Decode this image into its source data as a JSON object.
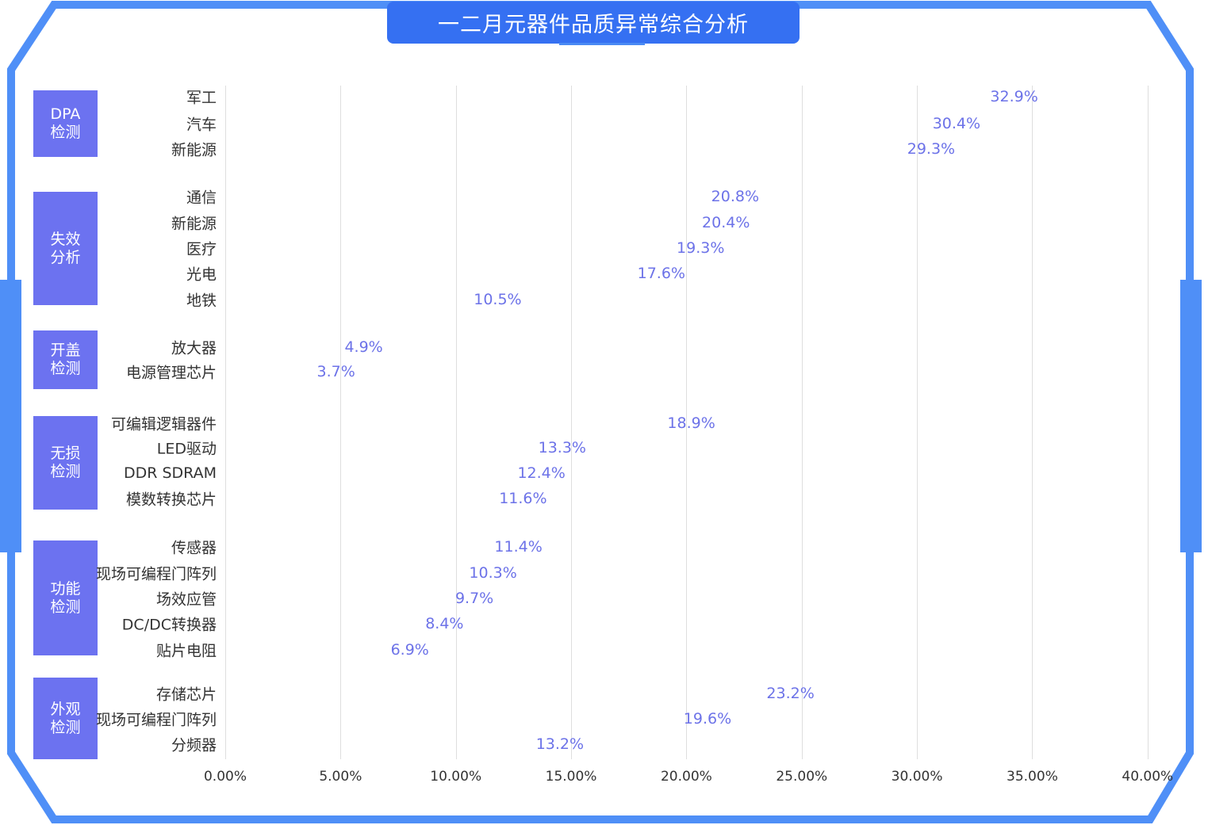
{
  "title": "一二月元器件品质异常综合分析",
  "colors": {
    "frame": "#4f8ff7",
    "title_bg": "#3570f2",
    "group_box": "#6c72f0",
    "bar_start": "#8a9df0",
    "bar_end": "#c5b2f8",
    "value_label": "#6c72e8",
    "gridline": "#dedede"
  },
  "chart_data": {
    "type": "bar",
    "orientation": "horizontal",
    "title": "一二月元器件品质异常综合分析",
    "xlabel": "",
    "ylabel": "",
    "xlim": [
      0,
      40
    ],
    "x_ticks": [
      "0.00%",
      "5.00%",
      "10.00%",
      "15.00%",
      "20.00%",
      "25.00%",
      "30.00%",
      "35.00%",
      "40.00%"
    ],
    "grid": "vertical",
    "legend": "none",
    "groups": [
      {
        "name": "DPA\n检测",
        "line1": "DPA",
        "line2": "检测",
        "items": [
          {
            "label": "军工",
            "value": 32.9,
            "text": "32.9%"
          },
          {
            "label": "汽车",
            "value": 30.4,
            "text": "30.4%"
          },
          {
            "label": "新能源",
            "value": 29.3,
            "text": "29.3%"
          }
        ]
      },
      {
        "name": "失效\n分析",
        "line1": "失效",
        "line2": "分析",
        "items": [
          {
            "label": "通信",
            "value": 20.8,
            "text": "20.8%"
          },
          {
            "label": "新能源",
            "value": 20.4,
            "text": "20.4%"
          },
          {
            "label": "医疗",
            "value": 19.3,
            "text": "19.3%"
          },
          {
            "label": "光电",
            "value": 17.6,
            "text": "17.6%"
          },
          {
            "label": "地铁",
            "value": 10.5,
            "text": "10.5%"
          }
        ]
      },
      {
        "name": "开盖\n检测",
        "line1": "开盖",
        "line2": "检测",
        "items": [
          {
            "label": "放大器",
            "value": 4.9,
            "text": "4.9%"
          },
          {
            "label": "电源管理芯片",
            "value": 3.7,
            "text": "3.7%"
          }
        ]
      },
      {
        "name": "无损\n检测",
        "line1": "无损",
        "line2": "检测",
        "items": [
          {
            "label": "可编辑逻辑器件",
            "value": 18.9,
            "text": "18.9%"
          },
          {
            "label": "LED驱动",
            "value": 13.3,
            "text": "13.3%"
          },
          {
            "label": "DDR SDRAM",
            "value": 12.4,
            "text": "12.4%"
          },
          {
            "label": "模数转换芯片",
            "value": 11.6,
            "text": "11.6%"
          }
        ]
      },
      {
        "name": "功能\n检测",
        "line1": "功能",
        "line2": "检测",
        "items": [
          {
            "label": "传感器",
            "value": 11.4,
            "text": "11.4%"
          },
          {
            "label": "现场可编程门阵列",
            "value": 10.3,
            "text": "10.3%"
          },
          {
            "label": "场效应管",
            "value": 9.7,
            "text": "9.7%"
          },
          {
            "label": "DC/DC转换器",
            "value": 8.4,
            "text": "8.4%"
          },
          {
            "label": "贴片电阻",
            "value": 6.9,
            "text": "6.9%"
          }
        ]
      },
      {
        "name": "外观\n检测",
        "line1": "外观",
        "line2": "检测",
        "items": [
          {
            "label": "存储芯片",
            "value": 23.2,
            "text": "23.2%"
          },
          {
            "label": "现场可编程门阵列",
            "value": 19.6,
            "text": "19.6%"
          },
          {
            "label": "分频器",
            "value": 13.2,
            "text": "13.2%"
          }
        ]
      }
    ]
  }
}
